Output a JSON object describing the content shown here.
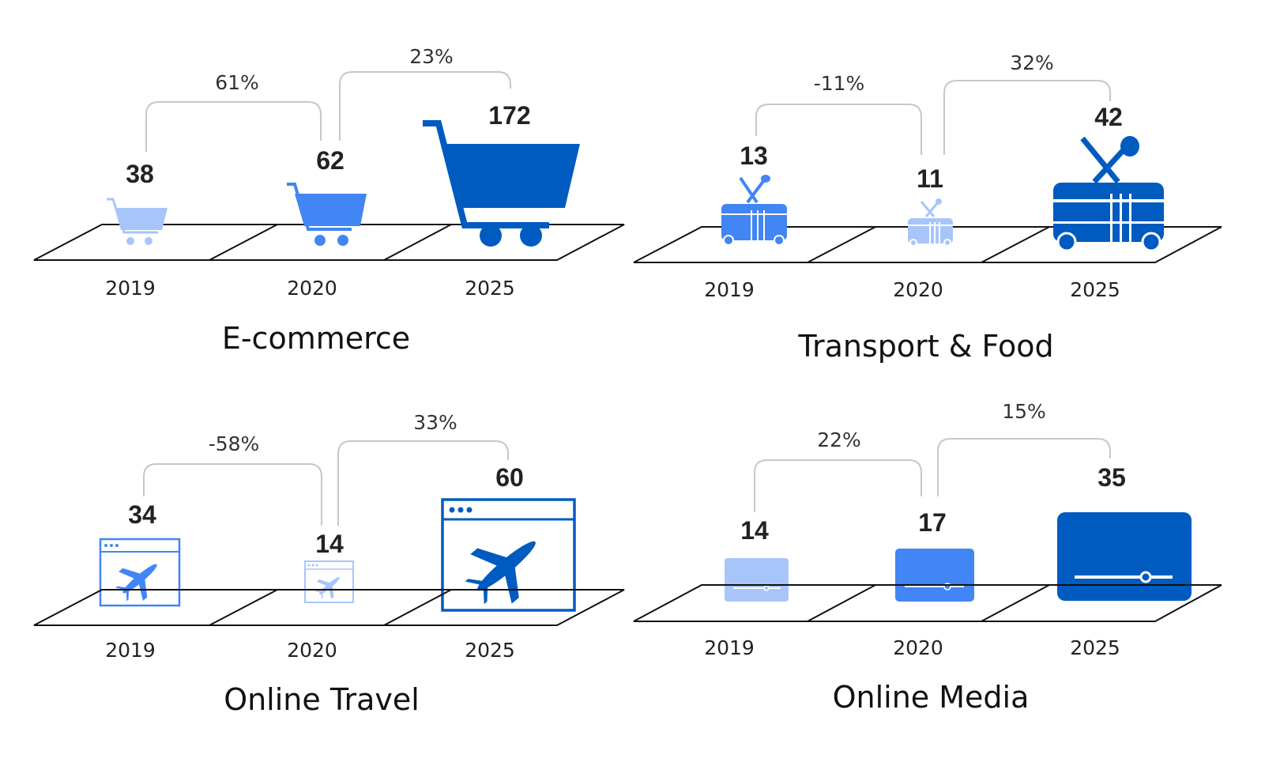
{
  "colors": {
    "light": "#a8c5fa",
    "medium": "#4285f4",
    "dark": "#005bc0",
    "bracket": "#c7c7c7"
  },
  "chart_data": [
    {
      "type": "bar",
      "title": "E-commerce",
      "icon": "shopping-cart-icon",
      "categories": [
        "2019",
        "2020",
        "2025"
      ],
      "values": [
        38,
        62,
        172
      ],
      "changes": [
        "61%",
        "23%"
      ]
    },
    {
      "type": "bar",
      "title": "Transport & Food",
      "icon": "food-bus-icon",
      "categories": [
        "2019",
        "2020",
        "2025"
      ],
      "values": [
        13,
        11,
        42
      ],
      "changes": [
        "-11%",
        "32%"
      ]
    },
    {
      "type": "bar",
      "title": "Online Travel",
      "icon": "airplane-window-icon",
      "categories": [
        "2019",
        "2020",
        "2025"
      ],
      "values": [
        34,
        14,
        60
      ],
      "changes": [
        "-58%",
        "33%"
      ]
    },
    {
      "type": "bar",
      "title": "Online Media",
      "icon": "video-player-icon",
      "categories": [
        "2019",
        "2020",
        "2025"
      ],
      "values": [
        14,
        17,
        35
      ],
      "changes": [
        "22%",
        "15%"
      ]
    }
  ]
}
